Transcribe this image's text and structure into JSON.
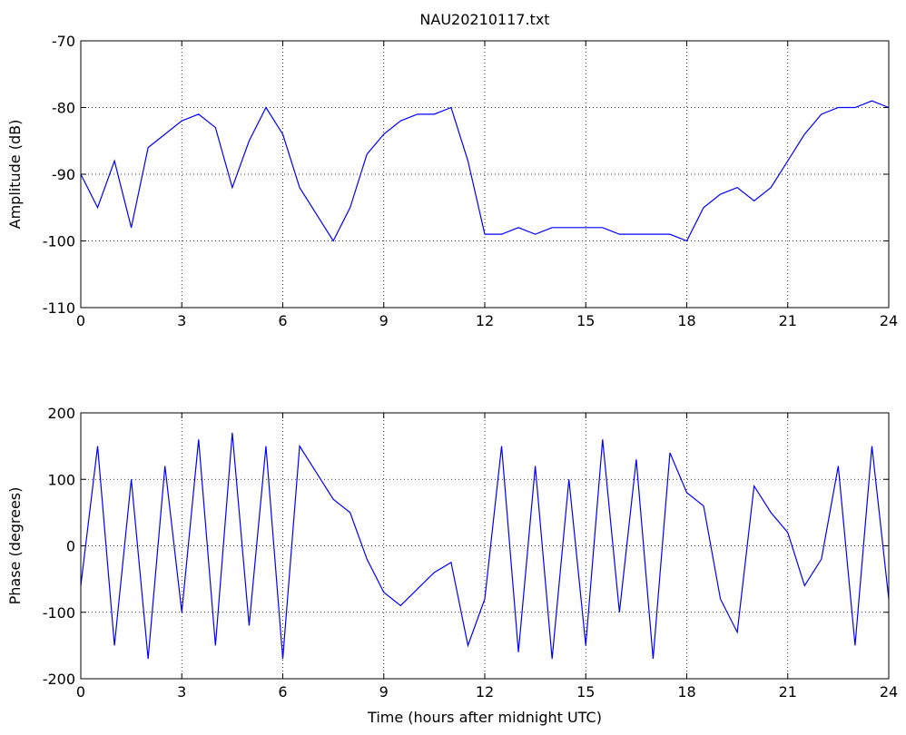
{
  "chart_data": [
    {
      "type": "line",
      "title": "NAU20210117.txt",
      "y_label": "Amplitude (dB)",
      "color": "#0000ff",
      "grid": true,
      "x": [
        0,
        0.5,
        1,
        1.5,
        2,
        2.5,
        3,
        3.5,
        4,
        4.5,
        5,
        5.5,
        6,
        6.5,
        7,
        7.5,
        8,
        8.5,
        9,
        9.5,
        10,
        10.5,
        11,
        11.5,
        12,
        12.5,
        13,
        13.5,
        14,
        14.5,
        15,
        15.5,
        16,
        16.5,
        17,
        17.5,
        18,
        18.5,
        19,
        19.5,
        20,
        20.5,
        21,
        21.5,
        22,
        22.5,
        23,
        23.5,
        24
      ],
      "values": [
        -90,
        -95,
        -88,
        -98,
        -86,
        -84,
        -82,
        -81,
        -83,
        -92,
        -85,
        -80,
        -84,
        -92,
        -96,
        -100,
        -95,
        -87,
        -84,
        -82,
        -81,
        -81,
        -80,
        -88,
        -99,
        -99,
        -98,
        -99,
        -98,
        -98,
        -98,
        -98,
        -99,
        -99,
        -99,
        -99,
        -100,
        -95,
        -93,
        -92,
        -94,
        -92,
        -88,
        -84,
        -81,
        -80,
        -80,
        -79,
        -80
      ],
      "xlim": [
        0,
        24
      ],
      "xticks": [
        0,
        3,
        6,
        9,
        12,
        15,
        18,
        21,
        24
      ],
      "ylim": [
        -110,
        -70
      ],
      "yticks": [
        -110,
        -100,
        -90,
        -80,
        -70
      ]
    },
    {
      "type": "line",
      "x_label": "Time (hours after midnight UTC)",
      "y_label": "Phase (degrees)",
      "color": "#0000ff",
      "grid": true,
      "x": [
        0,
        0.5,
        1,
        1.5,
        2,
        2.5,
        3,
        3.5,
        4,
        4.5,
        5,
        5.5,
        6,
        6.5,
        7,
        7.5,
        8,
        8.5,
        9,
        9.5,
        10,
        10.5,
        11,
        11.5,
        12,
        12.5,
        13,
        13.5,
        14,
        14.5,
        15,
        15.5,
        16,
        16.5,
        17,
        17.5,
        18,
        18.5,
        19,
        19.5,
        20,
        20.5,
        21,
        21.5,
        22,
        22.5,
        23,
        23.5,
        24
      ],
      "values": [
        -60,
        150,
        -150,
        100,
        -170,
        120,
        -100,
        160,
        -150,
        170,
        -120,
        150,
        -170,
        150,
        110,
        70,
        50,
        -20,
        -70,
        -90,
        -65,
        -40,
        -25,
        -150,
        -80,
        150,
        -160,
        120,
        -170,
        100,
        -150,
        160,
        -100,
        130,
        -170,
        140,
        80,
        60,
        -80,
        -130,
        90,
        50,
        20,
        -60,
        -20,
        120,
        -150,
        150,
        -80
      ],
      "xlim": [
        0,
        24
      ],
      "xticks": [
        0,
        3,
        6,
        9,
        12,
        15,
        18,
        21,
        24
      ],
      "ylim": [
        -200,
        200
      ],
      "yticks": [
        -200,
        -100,
        0,
        100,
        200
      ]
    }
  ]
}
